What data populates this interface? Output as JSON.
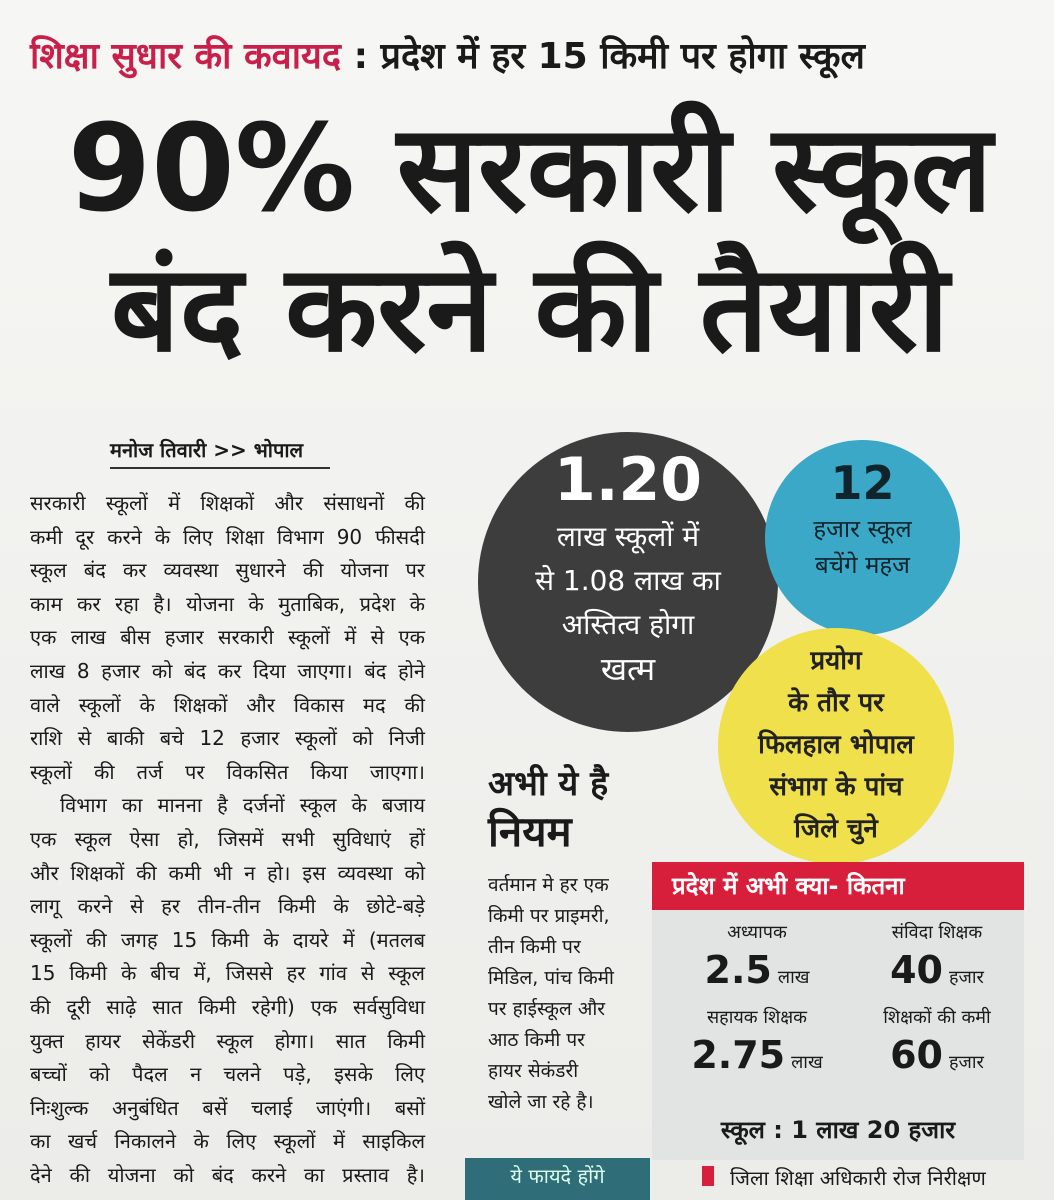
{
  "header": {
    "kicker": "शिक्षा सुधार की कवायद",
    "separator": ":",
    "kicker_rest": "प्रदेश में हर 15 किमी पर होगा स्कूल"
  },
  "headline": [
    "90% सरकारी स्कूल",
    "बंद करने की तैयारी"
  ],
  "byline": "मनोज तिवारी >> भोपाल",
  "body": [
    "सरकारी स्कूलों में शिक्षकों और संसाधनों की",
    "कमी दूर करने के लिए शिक्षा विभाग 90 फीसदी",
    "स्कूल बंद कर व्यवस्था सुधारने की योजना पर",
    "काम कर रहा है। योजना के मुताबिक, प्रदेश के",
    "एक लाख बीस हजार सरकारी स्कूलों में से एक",
    "लाख 8 हजार को बंद कर दिया जाएगा। बंद होने",
    "वाले स्कूलों के शिक्षकों और विकास मद की",
    "राशि से बाकी बचे 12 हजार स्कूलों को निजी",
    "स्कूलों की तर्ज पर विकसित किया जाएगा।",
    "विभाग का मानना है दर्जनों स्कूल के बजाय",
    "एक स्कूल ऐसा हो, जिसमें सभी सुविधाएं हों",
    "और शिक्षकों की कमी भी न हो। इस व्यवस्था को",
    "लागू करने से हर तीन-तीन किमी के छोटे-बड़े",
    "स्कूलों की जगह 15 किमी के दायरे में (मतलब",
    "15 किमी के बीच में, जिससे हर गांव से स्कूल",
    "की दूरी साढ़े सात किमी रहेगी) एक सर्वसुविधा",
    "युक्त हायर सेकेंडरी स्कूल होगा। सात किमी",
    "बच्चों को पैदल न चलने पड़े, इसके लिए",
    "निःशुल्क अनुबंधित बसें चलाई जाएंगी। बसों",
    "का खर्च निकालने के लिए स्कूलों में साइकिल",
    "देने की योजना को बंद करने का प्रस्ताव है।"
  ],
  "circles": {
    "dark": {
      "number": "1.20",
      "lines": [
        "लाख स्कूलों में",
        "से 1.08 लाख का",
        "अस्तित्व होगा",
        "खत्म"
      ]
    },
    "blue": {
      "number": "12",
      "lines": [
        "हजार स्कूल",
        "बचेंगे महज"
      ]
    },
    "yellow": {
      "lines": [
        "प्रयोग",
        "के तौर पर",
        "फिलहाल भोपाल",
        "संभाग के पांच",
        "जिले चुने"
      ]
    }
  },
  "rule": {
    "title": [
      "अभी ये है",
      "नियम"
    ],
    "lines": [
      "वर्तमान मे हर एक",
      "किमी पर प्राइमरी,",
      "तीन किमी पर",
      "मिडिल, पांच किमी",
      "पर हाईस्कूल और",
      "आठ किमी पर",
      "हायर सेकंडरी",
      "खोले जा रहे है।"
    ]
  },
  "stats": {
    "title": "प्रदेश में अभी क्या- कितना",
    "items": [
      {
        "label": "अध्यापक",
        "number": "2.5",
        "unit": "लाख"
      },
      {
        "label": "संविदा शिक्षक",
        "number": "40",
        "unit": "हजार"
      },
      {
        "label": "सहायक शिक्षक",
        "number": "2.75",
        "unit": "लाख"
      },
      {
        "label": "शिक्षकों की कमी",
        "number": "60",
        "unit": "हजार"
      }
    ],
    "footer": "स्कूल : 1 लाख 20 हजार"
  },
  "bottom": {
    "tab": "ये फायदे होंगे",
    "text": "जिला शिक्षा अधिकारी रोज निरीक्षण"
  }
}
